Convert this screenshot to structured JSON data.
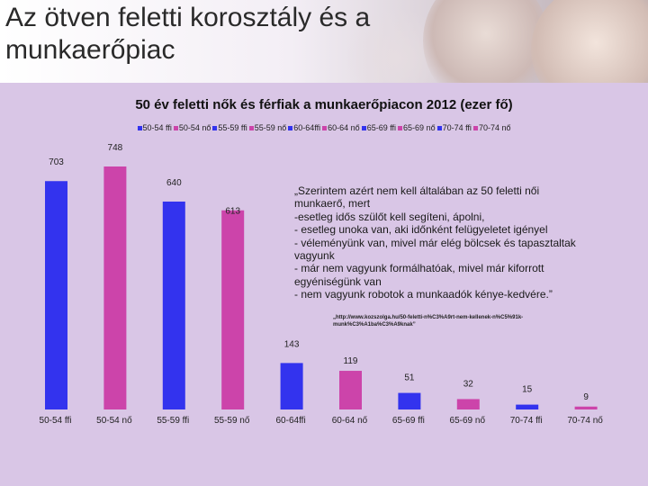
{
  "header": {
    "title": "Az ötven feletti korosztály és a munkaerőpiac"
  },
  "quote": {
    "lines": [
      "„Szerintem azért nem kell általában az 50 feletti női",
      "munkaerő, mert",
      "-esetleg idős szülőt kell segíteni, ápolni,",
      "- esetleg unoka van, aki időnként felügyeletet igényel",
      "- véleményünk van, mivel már elég bölcsek és tapasztaltak",
      "vagyunk",
      "- már nem vagyunk formálhatóak, mivel már kiforrott",
      "egyéniségünk van",
      "- nem vagyunk robotok a munkaadók kénye-kedvére.”"
    ],
    "source": "„http://www.kozszolga.hu/50-feletti-n%C3%A9rt-nem-kellenek-n%C5%91k-munk%C3%A1ba%C3%A9knak”"
  },
  "colors": {
    "ffi": "#3333ee",
    "no": "#cc44aa"
  },
  "chart_data": {
    "type": "bar",
    "title": "50 év feletti nők és férfiak a munkaerőpiacon 2012 (ezer fő)",
    "categories": [
      "50-54 ffi",
      "50-54 nő",
      "55-59 ffi",
      "55-59 nő",
      "60-64ffi",
      "60-64 nő",
      "65-69 ffi",
      "65-69 nő",
      "70-74 ffi",
      "70-74 nő"
    ],
    "values": [
      703,
      748,
      640,
      613,
      143,
      119,
      51,
      32,
      15,
      9
    ],
    "legend": [
      "50-54 ffi",
      "50-54 nő",
      "55-59 ffi",
      "55-59 nő",
      "60-64ffi",
      "60-64 nő",
      "65-69 ffi",
      "65-69 nő",
      "70-74 ffi",
      "70-74 nő"
    ],
    "ylim": [
      0,
      748
    ],
    "xlabel": "",
    "ylabel": "",
    "grid": false,
    "legend_position": "top"
  }
}
